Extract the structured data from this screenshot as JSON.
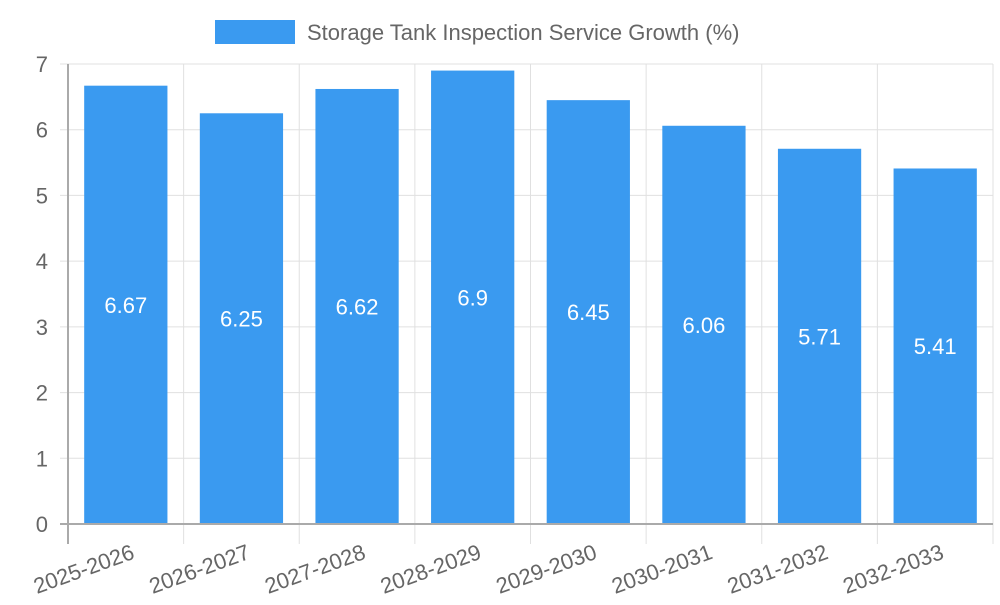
{
  "chart_data": {
    "type": "bar",
    "title": "",
    "legend": [
      {
        "label": "Storage Tank Inspection Service Growth (%)",
        "color": "#3a9af0"
      }
    ],
    "legend_placement": "top-center",
    "categories": [
      "2025-2026",
      "2026-2027",
      "2027-2028",
      "2028-2029",
      "2029-2030",
      "2030-2031",
      "2031-2032",
      "2032-2033"
    ],
    "series": [
      {
        "name": "Storage Tank Inspection Service Growth (%)",
        "values": [
          6.67,
          6.25,
          6.62,
          6.9,
          6.45,
          6.06,
          5.71,
          5.41
        ],
        "labels": [
          "6.67",
          "6.25",
          "6.62",
          "6.9",
          "6.45",
          "6.06",
          "5.71",
          "5.41"
        ]
      }
    ],
    "ylim": [
      0,
      7
    ],
    "yticks": [
      "0",
      "1",
      "2",
      "3",
      "4",
      "5",
      "6",
      "7"
    ],
    "grid": true,
    "xlabel": "",
    "ylabel": ""
  }
}
